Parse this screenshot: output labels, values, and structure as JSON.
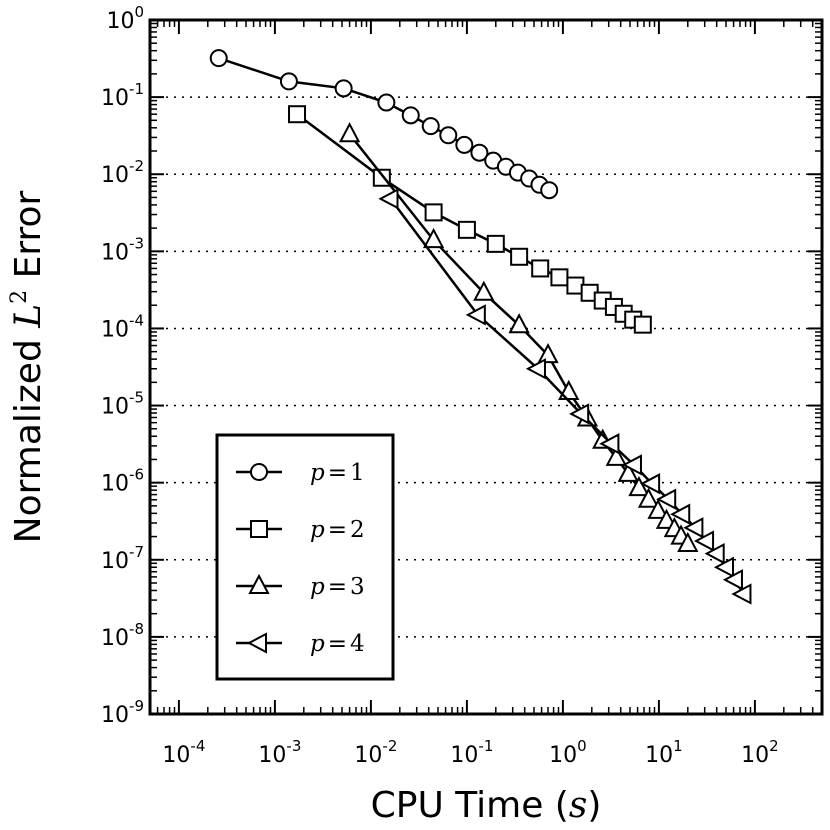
{
  "chart_data": {
    "type": "line",
    "xscale": "log",
    "yscale": "log",
    "xlabel": "CPU Time",
    "xlabel_var": "s",
    "ylabel": "Normalized",
    "ylabel_var": "L",
    "ylabel_sup": "2",
    "ylabel_tail": "Error",
    "xlim": [
      5e-05,
      500
    ],
    "ylim": [
      1e-09,
      1
    ],
    "x_tick_exponents": [
      "-4",
      "-3",
      "-2",
      "-1",
      "0",
      "1",
      "2"
    ],
    "y_tick_exponents": [
      "0",
      "-1",
      "-2",
      "-3",
      "-4",
      "-5",
      "-6",
      "-7",
      "-8",
      "-9"
    ],
    "tick_base": "10",
    "grid": "horizontal-dotted",
    "legend_position": "lower-left",
    "series": [
      {
        "name": "p = 1",
        "label_var": "p",
        "label_op": "=",
        "label_num": "1",
        "marker": "circle",
        "x": [
          0.00026,
          0.0014,
          0.0052,
          0.0145,
          0.026,
          0.042,
          0.064,
          0.094,
          0.135,
          0.188,
          0.255,
          0.34,
          0.445,
          0.57,
          0.72
        ],
        "y": [
          0.32,
          0.16,
          0.13,
          0.085,
          0.058,
          0.042,
          0.032,
          0.024,
          0.019,
          0.015,
          0.0125,
          0.0105,
          0.0088,
          0.0073,
          0.0062
        ]
      },
      {
        "name": "p = 2",
        "label_var": "p",
        "label_op": "=",
        "label_num": "2",
        "marker": "square",
        "x": [
          0.0017,
          0.013,
          0.045,
          0.1,
          0.2,
          0.35,
          0.58,
          0.92,
          1.35,
          1.9,
          2.6,
          3.4,
          4.3,
          5.4,
          6.8
        ],
        "y": [
          0.06,
          0.009,
          0.0032,
          0.0019,
          0.00125,
          0.00085,
          0.0006,
          0.00046,
          0.00036,
          0.00029,
          0.00023,
          0.00019,
          0.000155,
          0.00013,
          0.000112
        ]
      },
      {
        "name": "p = 3",
        "label_var": "p",
        "label_op": "=",
        "label_num": "3",
        "marker": "triangle-up",
        "x": [
          0.006,
          0.045,
          0.15,
          0.35,
          0.7,
          1.15,
          1.8,
          2.6,
          3.6,
          4.8,
          6.2,
          7.8,
          9.8,
          12,
          14.5,
          17,
          20
        ],
        "y": [
          0.033,
          0.0014,
          0.00029,
          0.00011,
          4.5e-05,
          1.5e-05,
          6.8e-06,
          3.5e-06,
          2.1e-06,
          1.3e-06,
          8.5e-07,
          6e-07,
          4.3e-07,
          3.2e-07,
          2.5e-07,
          2e-07,
          1.6e-07
        ]
      },
      {
        "name": "p = 4",
        "label_var": "p",
        "label_op": "=",
        "label_num": "4",
        "marker": "triangle-left",
        "x": [
          0.016,
          0.13,
          0.55,
          1.55,
          3.2,
          5.5,
          8.5,
          12.5,
          17.5,
          24,
          31,
          40,
          50,
          62,
          76
        ],
        "y": [
          0.0048,
          0.00015,
          3e-05,
          7.8e-06,
          3.2e-06,
          1.7e-06,
          9.7e-07,
          6.1e-07,
          3.9e-07,
          2.6e-07,
          1.75e-07,
          1.2e-07,
          8e-08,
          5.5e-08,
          3.6e-08
        ]
      }
    ]
  }
}
